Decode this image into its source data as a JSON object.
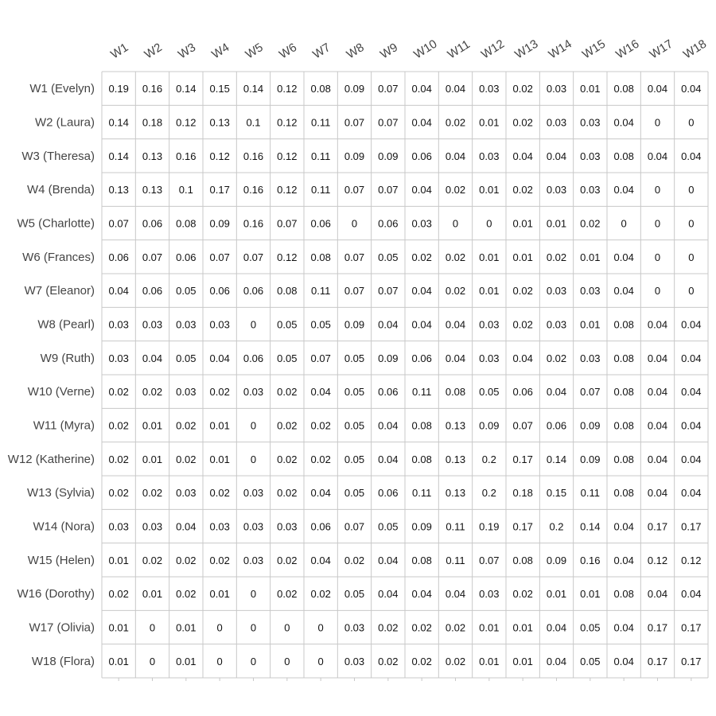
{
  "chart_data": {
    "type": "table",
    "title": "",
    "xlabel": "",
    "ylabel": "",
    "grid": true,
    "columns": [
      "W1",
      "W2",
      "W3",
      "W4",
      "W5",
      "W6",
      "W7",
      "W8",
      "W9",
      "W10",
      "W11",
      "W12",
      "W13",
      "W14",
      "W15",
      "W16",
      "W17",
      "W18"
    ],
    "rows": [
      "W1 (Evelyn)",
      "W2 (Laura)",
      "W3 (Theresa)",
      "W4 (Brenda)",
      "W5 (Charlotte)",
      "W6 (Frances)",
      "W7 (Eleanor)",
      "W8 (Pearl)",
      "W9 (Ruth)",
      "W10 (Verne)",
      "W11 (Myra)",
      "W12 (Katherine)",
      "W13 (Sylvia)",
      "W14 (Nora)",
      "W15 (Helen)",
      "W16 (Dorothy)",
      "W17 (Olivia)",
      "W18 (Flora)"
    ],
    "values": [
      [
        0.19,
        0.16,
        0.14,
        0.15,
        0.14,
        0.12,
        0.08,
        0.09,
        0.07,
        0.04,
        0.04,
        0.03,
        0.02,
        0.03,
        0.01,
        0.08,
        0.04,
        0.04
      ],
      [
        0.14,
        0.18,
        0.12,
        0.13,
        0.1,
        0.12,
        0.11,
        0.07,
        0.07,
        0.04,
        0.02,
        0.01,
        0.02,
        0.03,
        0.03,
        0.04,
        0,
        0
      ],
      [
        0.14,
        0.13,
        0.16,
        0.12,
        0.16,
        0.12,
        0.11,
        0.09,
        0.09,
        0.06,
        0.04,
        0.03,
        0.04,
        0.04,
        0.03,
        0.08,
        0.04,
        0.04
      ],
      [
        0.13,
        0.13,
        0.1,
        0.17,
        0.16,
        0.12,
        0.11,
        0.07,
        0.07,
        0.04,
        0.02,
        0.01,
        0.02,
        0.03,
        0.03,
        0.04,
        0,
        0
      ],
      [
        0.07,
        0.06,
        0.08,
        0.09,
        0.16,
        0.07,
        0.06,
        0,
        0.06,
        0.03,
        0,
        0,
        0.01,
        0.01,
        0.02,
        0,
        0,
        0
      ],
      [
        0.06,
        0.07,
        0.06,
        0.07,
        0.07,
        0.12,
        0.08,
        0.07,
        0.05,
        0.02,
        0.02,
        0.01,
        0.01,
        0.02,
        0.01,
        0.04,
        0,
        0
      ],
      [
        0.04,
        0.06,
        0.05,
        0.06,
        0.06,
        0.08,
        0.11,
        0.07,
        0.07,
        0.04,
        0.02,
        0.01,
        0.02,
        0.03,
        0.03,
        0.04,
        0,
        0
      ],
      [
        0.03,
        0.03,
        0.03,
        0.03,
        0,
        0.05,
        0.05,
        0.09,
        0.04,
        0.04,
        0.04,
        0.03,
        0.02,
        0.03,
        0.01,
        0.08,
        0.04,
        0.04
      ],
      [
        0.03,
        0.04,
        0.05,
        0.04,
        0.06,
        0.05,
        0.07,
        0.05,
        0.09,
        0.06,
        0.04,
        0.03,
        0.04,
        0.02,
        0.03,
        0.08,
        0.04,
        0.04
      ],
      [
        0.02,
        0.02,
        0.03,
        0.02,
        0.03,
        0.02,
        0.04,
        0.05,
        0.06,
        0.11,
        0.08,
        0.05,
        0.06,
        0.04,
        0.07,
        0.08,
        0.04,
        0.04
      ],
      [
        0.02,
        0.01,
        0.02,
        0.01,
        0,
        0.02,
        0.02,
        0.05,
        0.04,
        0.08,
        0.13,
        0.09,
        0.07,
        0.06,
        0.09,
        0.08,
        0.04,
        0.04
      ],
      [
        0.02,
        0.01,
        0.02,
        0.01,
        0,
        0.02,
        0.02,
        0.05,
        0.04,
        0.08,
        0.13,
        0.2,
        0.17,
        0.14,
        0.09,
        0.08,
        0.04,
        0.04
      ],
      [
        0.02,
        0.02,
        0.03,
        0.02,
        0.03,
        0.02,
        0.04,
        0.05,
        0.06,
        0.11,
        0.13,
        0.2,
        0.18,
        0.15,
        0.11,
        0.08,
        0.04,
        0.04
      ],
      [
        0.03,
        0.03,
        0.04,
        0.03,
        0.03,
        0.03,
        0.06,
        0.07,
        0.05,
        0.09,
        0.11,
        0.19,
        0.17,
        0.2,
        0.14,
        0.04,
        0.17,
        0.17
      ],
      [
        0.01,
        0.02,
        0.02,
        0.02,
        0.03,
        0.02,
        0.04,
        0.02,
        0.04,
        0.08,
        0.11,
        0.07,
        0.08,
        0.09,
        0.16,
        0.04,
        0.12,
        0.12
      ],
      [
        0.02,
        0.01,
        0.02,
        0.01,
        0,
        0.02,
        0.02,
        0.05,
        0.04,
        0.04,
        0.04,
        0.03,
        0.02,
        0.01,
        0.01,
        0.08,
        0.04,
        0.04
      ],
      [
        0.01,
        0,
        0.01,
        0,
        0,
        0,
        0,
        0.03,
        0.02,
        0.02,
        0.02,
        0.01,
        0.01,
        0.04,
        0.05,
        0.04,
        0.17,
        0.17
      ],
      [
        0.01,
        0,
        0.01,
        0,
        0,
        0,
        0,
        0.03,
        0.02,
        0.02,
        0.02,
        0.01,
        0.01,
        0.04,
        0.05,
        0.04,
        0.17,
        0.17
      ]
    ]
  }
}
